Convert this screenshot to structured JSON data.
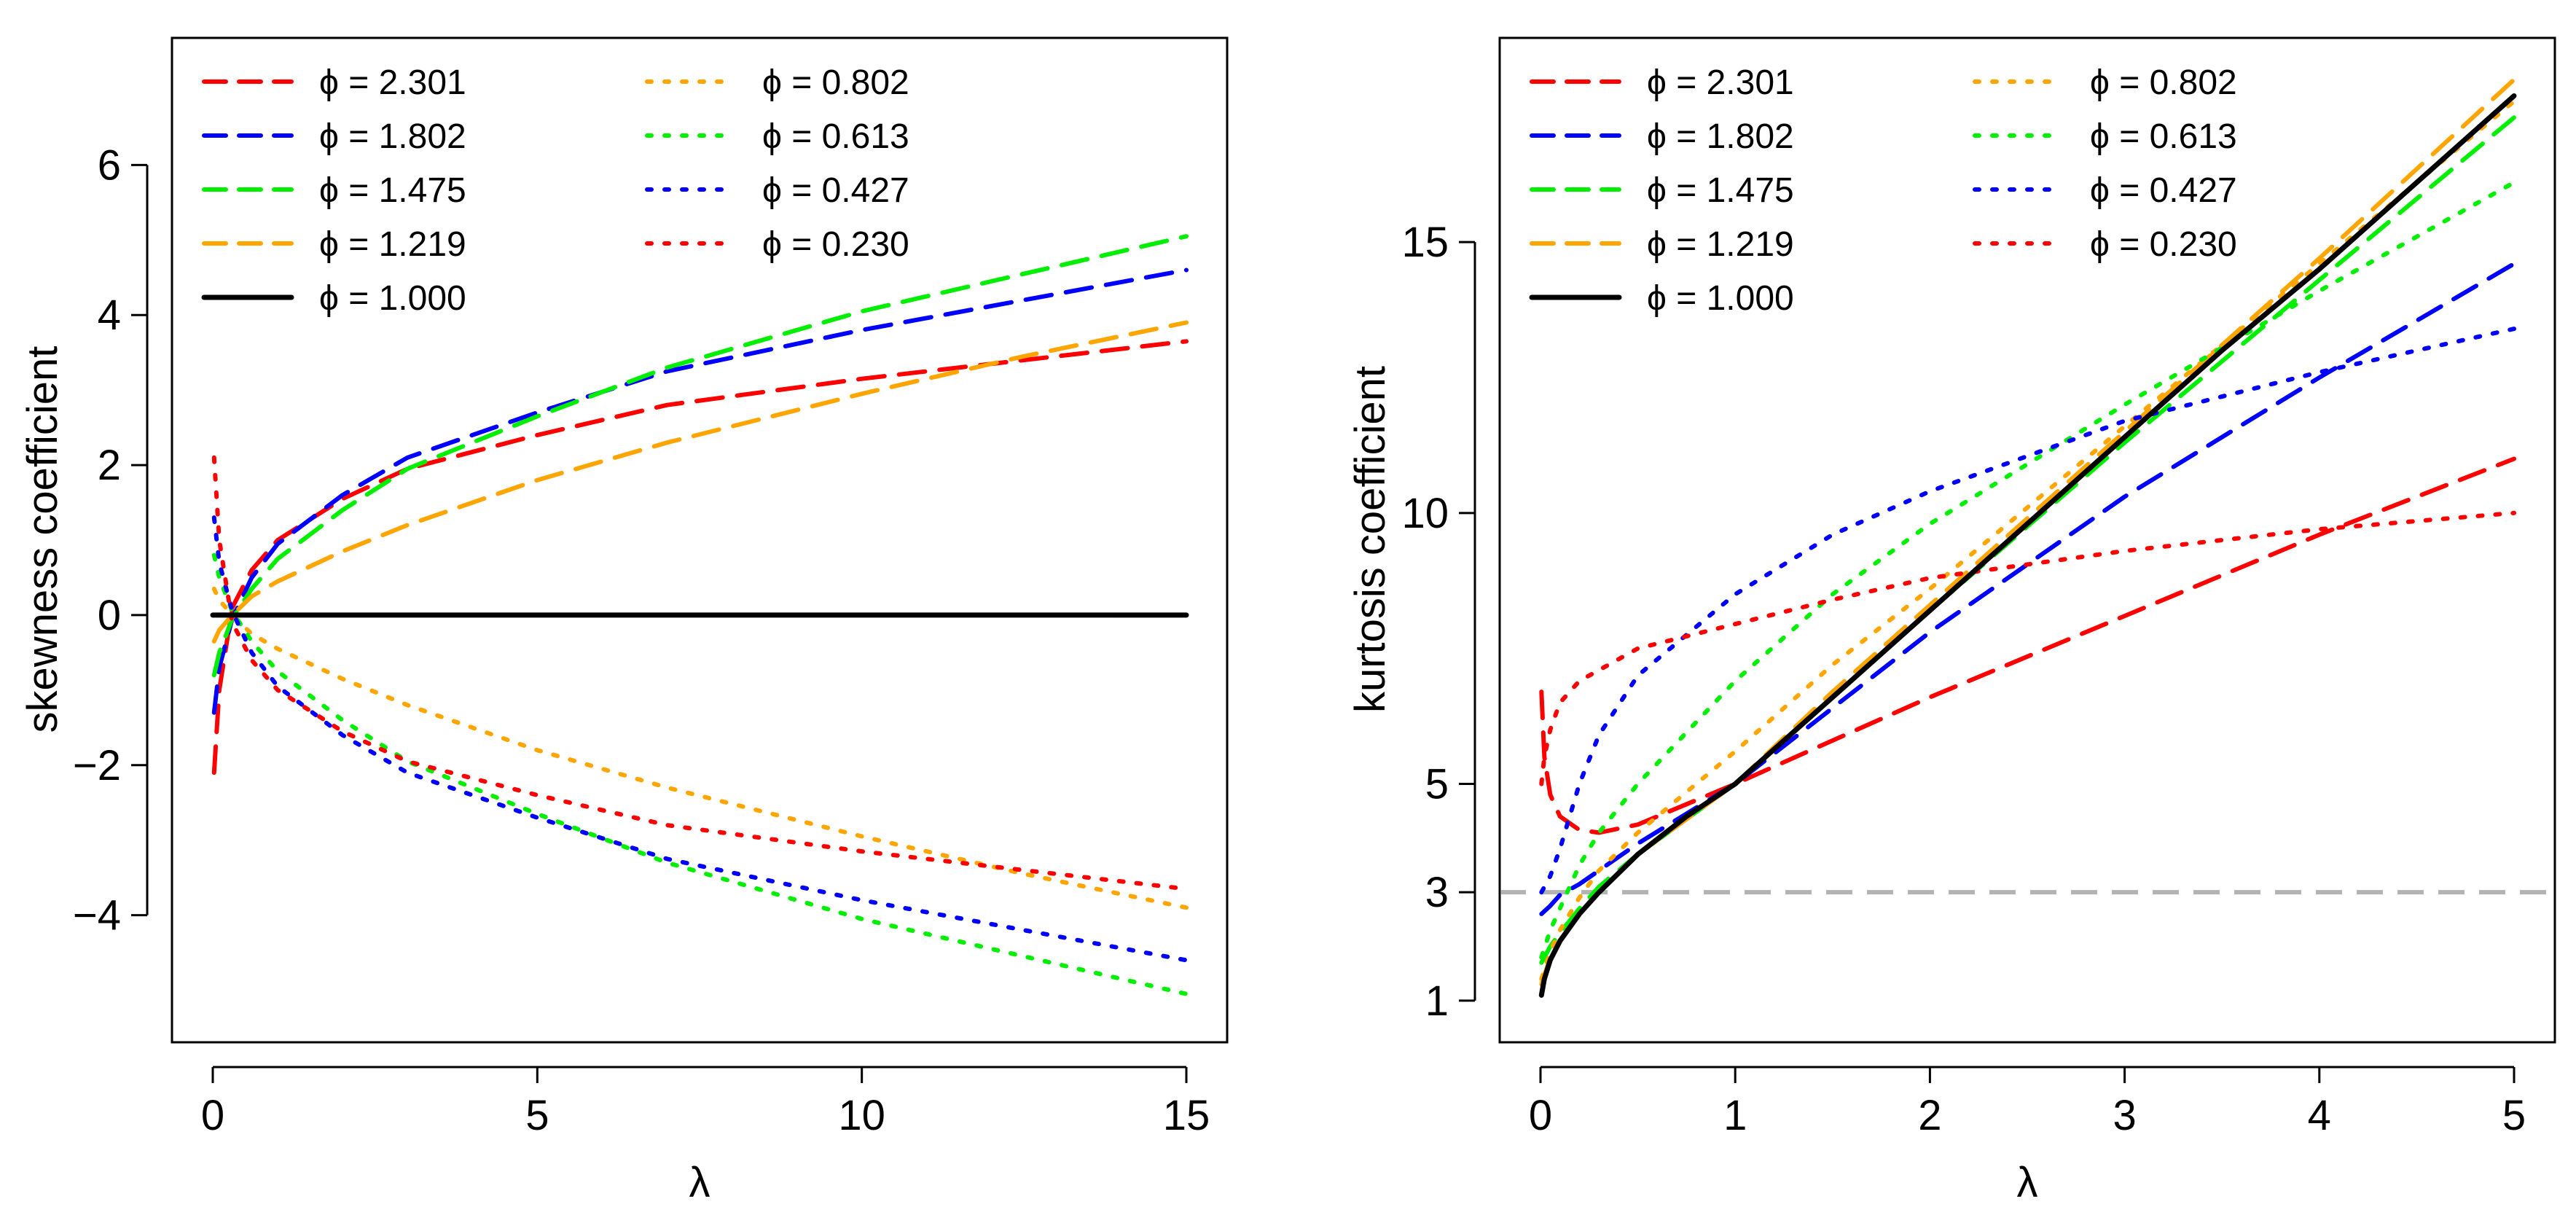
{
  "chart_data": [
    {
      "type": "line",
      "panel": "left",
      "xlabel": "λ",
      "ylabel": "skewness coefficient",
      "xlim": [
        0,
        15
      ],
      "ylim": [
        -5.5,
        7.5
      ],
      "xticks": [
        0,
        5,
        10,
        15
      ],
      "xtick_labels": [
        "0",
        "5",
        "10",
        "15"
      ],
      "yticks": [
        -4,
        -2,
        0,
        2,
        4,
        6
      ],
      "ytick_labels": [
        "−4",
        "−2",
        "0",
        "2",
        "4",
        "6"
      ],
      "legend_position": "top-left",
      "series": [
        {
          "name": "ϕ = 2.301",
          "phi_label": "ϕ = ",
          "phi_value": "2.301",
          "color": "#ff0000",
          "style": "dashed",
          "x": [
            0.02,
            0.1,
            0.3,
            0.6,
            1,
            2,
            3,
            5,
            7,
            10,
            12.5,
            15
          ],
          "y": [
            -2.1,
            -1.0,
            0.1,
            0.6,
            1.0,
            1.55,
            1.95,
            2.4,
            2.8,
            3.15,
            3.4,
            3.65
          ]
        },
        {
          "name": "ϕ = 1.802",
          "phi_label": "ϕ = ",
          "phi_value": "1.802",
          "color": "#0000ff",
          "style": "dashed",
          "x": [
            0.02,
            0.1,
            0.3,
            0.6,
            1,
            2,
            3,
            5,
            7,
            10,
            12.5,
            15
          ],
          "y": [
            -1.3,
            -0.7,
            -0.05,
            0.5,
            0.95,
            1.6,
            2.1,
            2.7,
            3.25,
            3.8,
            4.2,
            4.6
          ]
        },
        {
          "name": "ϕ = 1.475",
          "phi_label": "ϕ = ",
          "phi_value": "1.475",
          "color": "#00ee00",
          "style": "dashed",
          "x": [
            0.02,
            0.1,
            0.3,
            0.6,
            1,
            2,
            3,
            5,
            7,
            10,
            12.5,
            15
          ],
          "y": [
            -0.8,
            -0.5,
            -0.05,
            0.35,
            0.75,
            1.4,
            1.95,
            2.65,
            3.3,
            4.05,
            4.55,
            5.05
          ]
        },
        {
          "name": "ϕ = 1.219",
          "phi_label": "ϕ = ",
          "phi_value": "1.219",
          "color": "#ffa500",
          "style": "dashed",
          "x": [
            0.02,
            0.1,
            0.3,
            0.6,
            1,
            2,
            3,
            5,
            7,
            10,
            12.5,
            15
          ],
          "y": [
            -0.35,
            -0.2,
            0.0,
            0.25,
            0.45,
            0.85,
            1.2,
            1.8,
            2.3,
            2.95,
            3.45,
            3.9
          ]
        },
        {
          "name": "ϕ = 1.000",
          "phi_label": "ϕ = ",
          "phi_value": "1.000",
          "color": "#000000",
          "style": "solid",
          "x": [
            0,
            15
          ],
          "y": [
            0,
            0
          ]
        },
        {
          "name": "ϕ = 0.802",
          "phi_label": "ϕ = ",
          "phi_value": "0.802",
          "color": "#ffa500",
          "style": "dotted",
          "x": [
            0.02,
            0.1,
            0.3,
            0.6,
            1,
            2,
            3,
            5,
            7,
            10,
            12.5,
            15
          ],
          "y": [
            0.35,
            0.2,
            0.0,
            -0.25,
            -0.45,
            -0.85,
            -1.2,
            -1.8,
            -2.3,
            -2.95,
            -3.45,
            -3.9
          ]
        },
        {
          "name": "ϕ = 0.613",
          "phi_label": "ϕ = ",
          "phi_value": "0.613",
          "color": "#00ee00",
          "style": "dotted",
          "x": [
            0.02,
            0.1,
            0.3,
            0.6,
            1,
            2,
            3,
            5,
            7,
            10,
            12.5,
            15
          ],
          "y": [
            0.8,
            0.5,
            0.05,
            -0.35,
            -0.75,
            -1.4,
            -1.95,
            -2.65,
            -3.3,
            -4.05,
            -4.55,
            -5.05
          ]
        },
        {
          "name": "ϕ = 0.427",
          "phi_label": "ϕ = ",
          "phi_value": "0.427",
          "color": "#0000ff",
          "style": "dotted",
          "x": [
            0.02,
            0.1,
            0.3,
            0.6,
            1,
            2,
            3,
            5,
            7,
            10,
            12.5,
            15
          ],
          "y": [
            1.3,
            0.7,
            0.05,
            -0.5,
            -0.95,
            -1.6,
            -2.1,
            -2.7,
            -3.25,
            -3.8,
            -4.2,
            -4.6
          ]
        },
        {
          "name": "ϕ = 0.230",
          "phi_label": "ϕ = ",
          "phi_value": "0.230",
          "color": "#ff0000",
          "style": "dotted",
          "x": [
            0.02,
            0.1,
            0.3,
            0.6,
            1,
            2,
            3,
            5,
            7,
            10,
            12.5,
            15
          ],
          "y": [
            2.1,
            1.0,
            -0.1,
            -0.6,
            -1.0,
            -1.55,
            -1.95,
            -2.4,
            -2.8,
            -3.15,
            -3.4,
            -3.65
          ]
        }
      ]
    },
    {
      "type": "line",
      "panel": "right",
      "xlabel": "λ",
      "ylabel": "kurtosis coefficient",
      "xlim": [
        0,
        5
      ],
      "ylim": [
        0.5,
        18.5
      ],
      "xticks": [
        0,
        1,
        2,
        3,
        4,
        5
      ],
      "xtick_labels": [
        "0",
        "1",
        "2",
        "3",
        "4",
        "5"
      ],
      "yticks": [
        1,
        3,
        5,
        10,
        15
      ],
      "ytick_labels": [
        "1",
        "3",
        "5",
        "10",
        "15"
      ],
      "reference_line": {
        "y": 3,
        "color": "#b3b3b3",
        "style": "dashed"
      },
      "legend_position": "top-left",
      "series": [
        {
          "name": "ϕ = 2.301",
          "phi_label": "ϕ = ",
          "phi_value": "2.301",
          "color": "#ff0000",
          "style": "dashed",
          "x": [
            0.005,
            0.02,
            0.05,
            0.1,
            0.2,
            0.3,
            0.5,
            1,
            1.5,
            2,
            3,
            4,
            5
          ],
          "y": [
            6.7,
            5.5,
            4.8,
            4.4,
            4.15,
            4.1,
            4.25,
            5.0,
            5.8,
            6.6,
            8.1,
            9.6,
            11.0
          ]
        },
        {
          "name": "ϕ = 1.802",
          "phi_label": "ϕ = ",
          "phi_value": "1.802",
          "color": "#0000ff",
          "style": "dashed",
          "x": [
            0.005,
            0.05,
            0.1,
            0.2,
            0.3,
            0.5,
            1,
            1.5,
            2,
            3,
            4,
            5
          ],
          "y": [
            2.6,
            2.75,
            2.95,
            3.15,
            3.4,
            3.9,
            5.0,
            6.4,
            7.8,
            10.3,
            12.5,
            14.6
          ]
        },
        {
          "name": "ϕ = 1.475",
          "phi_label": "ϕ = ",
          "phi_value": "1.475",
          "color": "#00ee00",
          "style": "dashed",
          "x": [
            0.005,
            0.05,
            0.1,
            0.2,
            0.3,
            0.5,
            1,
            1.5,
            2,
            3,
            4,
            5
          ],
          "y": [
            1.7,
            2.0,
            2.25,
            2.7,
            3.1,
            3.7,
            5.0,
            6.6,
            8.2,
            11.3,
            14.3,
            17.3
          ]
        },
        {
          "name": "ϕ = 1.219",
          "phi_label": "ϕ = ",
          "phi_value": "1.219",
          "color": "#ffa500",
          "style": "dashed",
          "x": [
            0.005,
            0.05,
            0.1,
            0.2,
            0.3,
            0.5,
            1,
            1.5,
            2,
            3,
            4,
            5
          ],
          "y": [
            1.3,
            1.8,
            2.1,
            2.6,
            3.0,
            3.7,
            5.0,
            6.7,
            8.3,
            11.5,
            14.7,
            18.0
          ]
        },
        {
          "name": "ϕ = 1.000",
          "phi_label": "ϕ = ",
          "phi_value": "1.000",
          "color": "#000000",
          "style": "solid",
          "x": [
            0.005,
            0.02,
            0.05,
            0.1,
            0.2,
            0.3,
            0.5,
            0.75,
            1,
            1.5,
            2,
            2.5,
            3,
            3.5,
            4,
            4.5,
            5
          ],
          "y": [
            1.1,
            1.4,
            1.75,
            2.1,
            2.6,
            3.0,
            3.7,
            4.4,
            5.0,
            6.6,
            8.2,
            9.8,
            11.4,
            13.0,
            14.5,
            16.1,
            17.7
          ]
        },
        {
          "name": "ϕ = 0.802",
          "phi_label": "ϕ = ",
          "phi_value": "0.802",
          "color": "#ffa500",
          "style": "dotted",
          "x": [
            0.005,
            0.05,
            0.1,
            0.2,
            0.3,
            0.5,
            1,
            1.5,
            2,
            3,
            4,
            5
          ],
          "y": [
            1.4,
            1.9,
            2.3,
            2.9,
            3.4,
            4.1,
            5.6,
            7.2,
            8.6,
            11.6,
            14.6,
            17.6
          ]
        },
        {
          "name": "ϕ = 0.613",
          "phi_label": "ϕ = ",
          "phi_value": "0.613",
          "color": "#00ee00",
          "style": "dotted",
          "x": [
            0.005,
            0.05,
            0.1,
            0.2,
            0.3,
            0.5,
            1,
            1.5,
            2,
            3,
            4,
            5
          ],
          "y": [
            1.8,
            2.3,
            2.7,
            3.5,
            4.1,
            5.0,
            6.9,
            8.5,
            9.8,
            12.0,
            14.1,
            16.1
          ]
        },
        {
          "name": "ϕ = 0.427",
          "phi_label": "ϕ = ",
          "phi_value": "0.427",
          "color": "#0000ff",
          "style": "dotted",
          "x": [
            0.005,
            0.05,
            0.1,
            0.2,
            0.3,
            0.5,
            1,
            1.5,
            2,
            3,
            4,
            5
          ],
          "y": [
            3.0,
            3.3,
            3.8,
            5.0,
            5.9,
            7.0,
            8.5,
            9.6,
            10.4,
            11.7,
            12.6,
            13.4
          ]
        },
        {
          "name": "ϕ = 0.230",
          "phi_label": "ϕ = ",
          "phi_value": "0.230",
          "color": "#ff0000",
          "style": "dotted",
          "x": [
            0.005,
            0.02,
            0.05,
            0.1,
            0.2,
            0.3,
            0.5,
            1,
            1.5,
            2,
            3,
            4,
            5
          ],
          "y": [
            5.0,
            5.5,
            6.0,
            6.5,
            6.9,
            7.1,
            7.5,
            7.95,
            8.4,
            8.8,
            9.3,
            9.7,
            10.0
          ]
        }
      ]
    }
  ]
}
